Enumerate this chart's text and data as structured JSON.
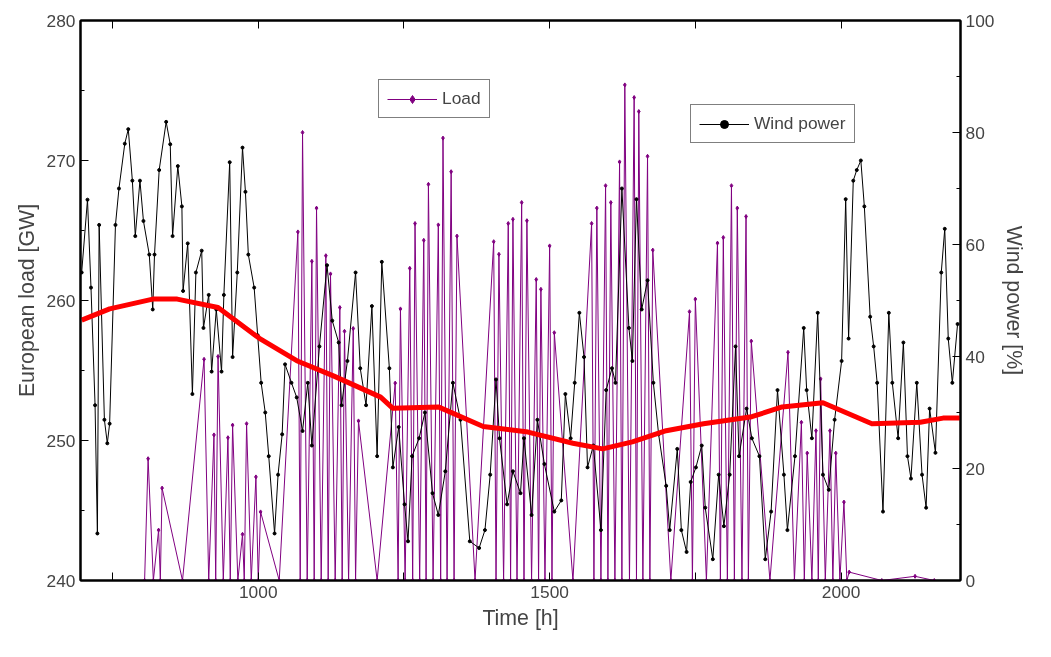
{
  "chart_data": {
    "type": "line",
    "xlabel": "Time [h]",
    "ylabel": "European load [GW]",
    "y2label": "Wind power [%]",
    "xlim": [
      695,
      2205
    ],
    "xticks": [
      {
        "value": 750,
        "label": null
      },
      1000,
      {
        "value": 1250,
        "label": null
      },
      1500,
      {
        "value": 1750,
        "label": null
      },
      2000
    ],
    "ylim": [
      240,
      280
    ],
    "yticks": [
      240,
      250,
      260,
      270,
      280
    ],
    "y2lim": [
      0,
      100
    ],
    "y2ticks": [
      0,
      20,
      40,
      60,
      80,
      100
    ],
    "grid": false,
    "legend": "top",
    "line_style": "solid",
    "series": [
      {
        "name": "Load",
        "color": "#800080",
        "marker": "diamond",
        "axis": "y",
        "x": [
          805,
          811,
          820,
          829,
          832,
          835,
          870,
          907,
          915,
          924,
          927,
          931,
          940,
          948,
          952,
          956,
          965,
          973,
          976,
          980,
          988,
          996,
          1000,
          1004,
          1036,
          1068,
          1072,
          1076,
          1084,
          1092,
          1096,
          1100,
          1108,
          1116,
          1120,
          1124,
          1132,
          1140,
          1144,
          1148,
          1155,
          1163,
          1167,
          1172,
          1204,
          1235,
          1240,
          1244,
          1252,
          1260,
          1265,
          1269,
          1277,
          1284,
          1288,
          1292,
          1300,
          1309,
          1313,
          1317,
          1324,
          1331,
          1336,
          1341,
          1372,
          1404,
          1408,
          1413,
          1421,
          1429,
          1433,
          1437,
          1444,
          1452,
          1456,
          1461,
          1469,
          1477,
          1481,
          1485,
          1492,
          1500,
          1504,
          1508,
          1540,
          1572,
          1576,
          1581,
          1588,
          1596,
          1600,
          1605,
          1612,
          1620,
          1624,
          1629,
          1637,
          1645,
          1649,
          1653,
          1660,
          1668,
          1672,
          1677,
          1708,
          1740,
          1745,
          1750,
          1769,
          1788,
          1793,
          1798,
          1805,
          1812,
          1817,
          1822,
          1830,
          1837,
          1841,
          1846,
          1878,
          1909,
          1920,
          1932,
          1937,
          1942,
          1950,
          1957,
          1961,
          1965,
          1973,
          1981,
          1986,
          1991,
          1998,
          2005,
          2010,
          2014,
          2070,
          2127,
          2160
        ],
        "values": [
          240,
          248.7,
          240,
          243.6,
          240,
          246.6,
          240,
          255.8,
          240,
          250.4,
          240,
          256,
          240,
          250.2,
          240,
          251.1,
          240,
          243.3,
          240,
          251.2,
          240,
          247.4,
          240,
          244.9,
          240,
          264.9,
          240,
          272,
          240,
          262.8,
          240,
          266.6,
          240,
          263.2,
          240,
          261.9,
          240,
          259.5,
          240,
          257.8,
          240,
          258,
          240,
          251.4,
          240,
          254.1,
          240,
          259.4,
          240,
          262.3,
          240,
          265.5,
          240,
          264.3,
          240,
          268.3,
          240,
          265.4,
          240,
          271.6,
          240,
          269.2,
          240,
          264.6,
          240,
          264.2,
          240,
          263.3,
          240,
          265.5,
          240,
          265.8,
          240,
          267,
          240,
          265.7,
          240,
          261.5,
          240,
          260.8,
          240,
          263.9,
          240,
          257.7,
          240,
          265.5,
          240,
          266.6,
          240,
          268.2,
          240,
          267,
          240,
          269.9,
          240,
          275.4,
          240,
          274.5,
          240,
          273.5,
          240,
          270.3,
          240,
          263.6,
          240,
          259.2,
          240,
          260.1,
          240,
          264.1,
          240,
          264.5,
          240,
          268.2,
          240,
          266.6,
          240,
          266,
          240,
          257.1,
          240,
          256.3,
          240,
          251.3,
          240,
          249.1,
          240,
          250.7,
          240,
          254.4,
          240,
          250.7,
          240,
          249.1,
          240,
          245.6,
          240,
          240.6,
          240,
          240.3,
          240
        ]
      },
      {
        "name": "Wind power",
        "color": "#000000",
        "marker": "circle",
        "axis": "y2",
        "x": [
          697,
          707,
          713,
          720,
          724,
          727,
          736,
          741,
          745,
          755,
          761,
          771,
          777,
          784,
          789,
          797,
          803,
          813,
          819,
          822,
          830,
          842,
          849,
          853,
          862,
          869,
          871,
          879,
          887,
          893,
          903,
          906,
          915,
          920,
          928,
          937,
          941,
          951,
          956,
          964,
          973,
          978,
          983,
          993,
          999,
          1005,
          1012,
          1018,
          1028,
          1034,
          1041,
          1046,
          1057,
          1066,
          1076,
          1085,
          1092,
          1105,
          1118,
          1127,
          1138,
          1143,
          1153,
          1167,
          1175,
          1185,
          1195,
          1204,
          1212,
          1225,
          1231,
          1241,
          1251,
          1257,
          1264,
          1276,
          1286,
          1299,
          1309,
          1321,
          1334,
          1347,
          1363,
          1379,
          1389,
          1398,
          1408,
          1414,
          1427,
          1437,
          1450,
          1456,
          1469,
          1479,
          1491,
          1508,
          1520,
          1527,
          1536,
          1543,
          1551,
          1559,
          1565,
          1575,
          1588,
          1597,
          1607,
          1613,
          1624,
          1636,
          1642,
          1649,
          1658,
          1668,
          1678,
          1687,
          1700,
          1706,
          1719,
          1726,
          1735,
          1742,
          1751,
          1761,
          1767,
          1780,
          1790,
          1799,
          1809,
          1819,
          1825,
          1838,
          1847,
          1860,
          1870,
          1880,
          1891,
          1902,
          1908,
          1921,
          1936,
          1941,
          1950,
          1960,
          1969,
          1979,
          1989,
          2001,
          2008,
          2013,
          2021,
          2027,
          2034,
          2040,
          2050,
          2056,
          2062,
          2072,
          2082,
          2088,
          2098,
          2107,
          2114,
          2120,
          2130,
          2139,
          2146,
          2152,
          2162,
          2172,
          2178,
          2184,
          2191,
          2200
        ],
        "values": [
          55,
          68,
          52.3,
          31.3,
          8.4,
          63.5,
          28.7,
          24.5,
          28,
          63.5,
          70,
          78,
          80.6,
          71.4,
          61.5,
          71.4,
          64.2,
          58.2,
          48.4,
          58.2,
          73.3,
          81.9,
          77.9,
          61.5,
          74,
          66.8,
          51.7,
          60.2,
          33.3,
          55,
          58.9,
          45.1,
          51,
          37.3,
          48.4,
          37.3,
          51,
          74.7,
          39.9,
          55,
          77.3,
          69.4,
          58.2,
          52.3,
          43.8,
          35.3,
          30,
          22.2,
          8.4,
          18.9,
          26.1,
          38.6,
          35.3,
          32.7,
          26.7,
          35.3,
          24.1,
          41.8,
          56.3,
          46.4,
          42.5,
          31.3,
          39.2,
          55,
          37.9,
          31.3,
          49,
          22.2,
          56.9,
          37.9,
          20.2,
          27.4,
          13.6,
          7,
          22.2,
          25.4,
          30,
          15.6,
          11.7,
          19.5,
          35.3,
          28.7,
          7,
          5.8,
          9,
          18.9,
          35.9,
          25.4,
          13.6,
          19.5,
          15.6,
          25.4,
          11.7,
          28.7,
          20.8,
          12.3,
          14.3,
          33.3,
          25.4,
          35.3,
          47.8,
          39.9,
          20.2,
          24.1,
          9,
          34,
          37.9,
          35.3,
          70,
          45.1,
          39.2,
          68.1,
          48.4,
          53.6,
          35.3,
          26.1,
          16.9,
          9,
          23.5,
          9,
          5.1,
          17.6,
          20.2,
          24.1,
          13,
          3.8,
          18.9,
          9.7,
          18.9,
          41.8,
          22.2,
          30.7,
          25.4,
          22.2,
          3.8,
          12.3,
          34,
          18.9,
          9,
          22.2,
          45.1,
          34,
          25.4,
          47.8,
          18.9,
          16.2,
          28.7,
          39.2,
          68.1,
          43.2,
          71.4,
          73.3,
          75,
          66.8,
          47.1,
          41.8,
          35.3,
          12.3,
          47.8,
          35.3,
          25.4,
          42.5,
          22.2,
          18.2,
          35.3,
          18.9,
          13,
          30.7,
          22.8,
          55,
          62.8,
          43.2,
          35.3,
          45.8
        ]
      },
      {
        "color": "#ff0000",
        "marker": "none",
        "axis": "y",
        "x": [
          697,
          745,
          819,
          861,
          931,
          1002,
          1066,
          1130,
          1210,
          1231,
          1309,
          1386,
          1463,
          1540,
          1591,
          1642,
          1700,
          1764,
          1847,
          1899,
          1969,
          2008,
          2053,
          2136,
          2175,
          2204
        ],
        "values": [
          258.6,
          259.4,
          260.1,
          260.1,
          259.5,
          257.3,
          255.7,
          254.6,
          253.1,
          252.3,
          252.4,
          251,
          250.6,
          249.8,
          249.4,
          249.9,
          250.7,
          251.2,
          251.7,
          252.4,
          252.7,
          252,
          251.2,
          251.3,
          251.6,
          251.6
        ]
      }
    ]
  }
}
